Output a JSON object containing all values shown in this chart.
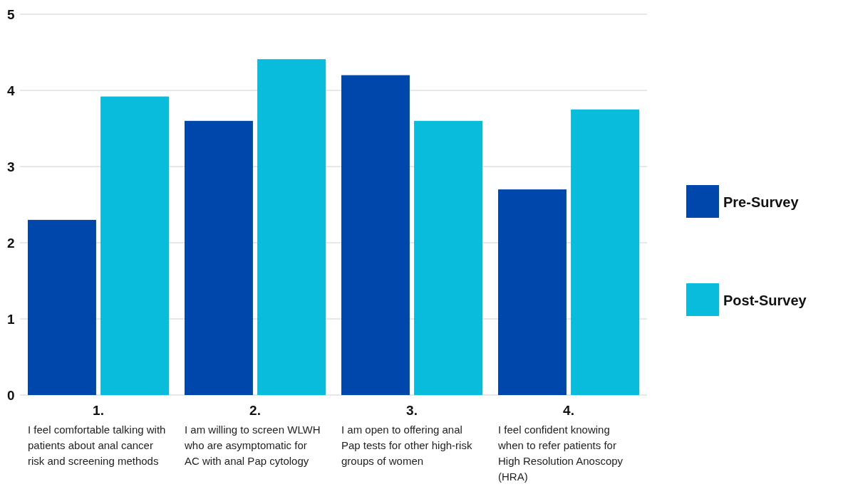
{
  "chart_data": {
    "type": "bar",
    "categories": [
      "1.",
      "2.",
      "3.",
      "4."
    ],
    "series": [
      {
        "name": "Pre-Survey",
        "color": "#0047ab",
        "values": [
          2.3,
          3.6,
          4.2,
          2.7
        ]
      },
      {
        "name": "Post-Survey",
        "color": "#0abcdc",
        "values": [
          3.92,
          4.41,
          3.6,
          3.75
        ]
      }
    ],
    "ylim": [
      0,
      5
    ],
    "yticks": [
      0,
      1,
      2,
      3,
      4,
      5
    ],
    "grid": "y",
    "legend": "right",
    "annotations": [
      "I feel comfortable talking with patients about anal cancer risk and screening methods",
      "I am willing to screen WLWH who are asymptomatic for AC with anal Pap cytology",
      "I am open to offering anal Pap tests for other high-risk groups of women",
      "I feel confident knowing when to refer patients for High Resolution Anoscopy (HRA)"
    ]
  }
}
